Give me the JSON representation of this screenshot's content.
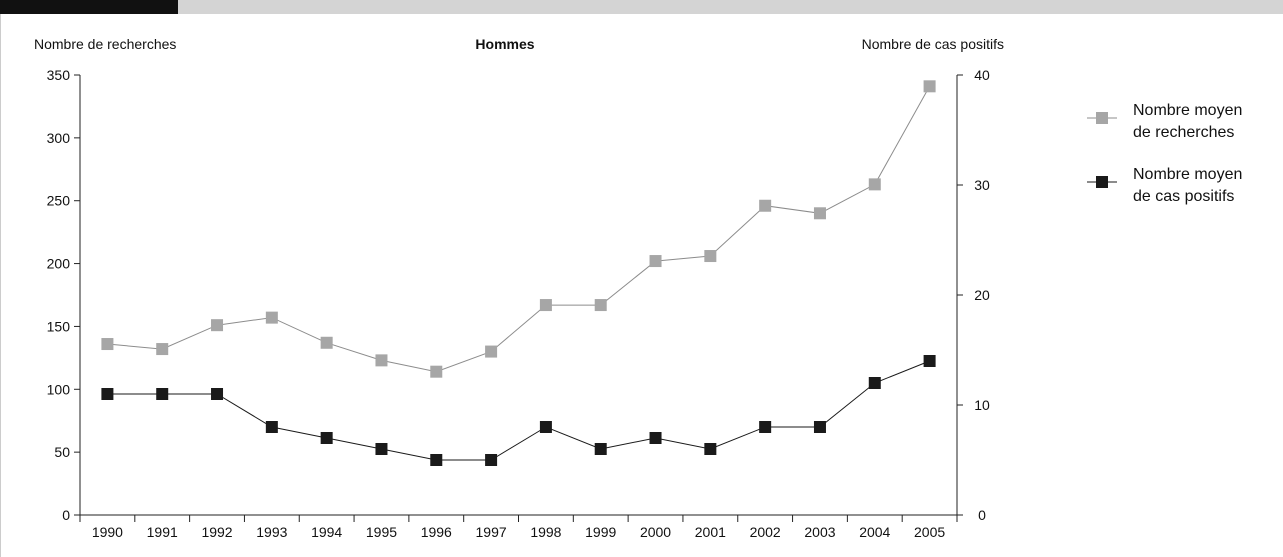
{
  "chart_data": {
    "type": "line",
    "title": "Hommes",
    "ylabel_left": "Nombre de recherches",
    "ylabel_right": "Nombre de cas positifs",
    "x": [
      "1990",
      "1991",
      "1992",
      "1993",
      "1994",
      "1995",
      "1996",
      "1997",
      "1998",
      "1999",
      "2000",
      "2001",
      "2002",
      "2003",
      "2004",
      "2005"
    ],
    "y_left_range": [
      0,
      350
    ],
    "y_left_ticks": [
      0,
      50,
      100,
      150,
      200,
      250,
      300,
      350
    ],
    "y_right_range": [
      0,
      40
    ],
    "y_right_ticks": [
      0,
      10,
      20,
      30,
      40
    ],
    "grid": false,
    "legend_position": "right",
    "series": [
      {
        "name": "Nombre moyen de recherches",
        "legend_lines": [
          "Nombre moyen",
          "de recherches"
        ],
        "axis": "left",
        "color": "#a6a6a6",
        "marker": "square",
        "values": [
          136,
          132,
          151,
          157,
          137,
          123,
          114,
          130,
          167,
          167,
          202,
          206,
          246,
          240,
          263,
          341
        ]
      },
      {
        "name": "Nombre moyen de cas positifs",
        "legend_lines": [
          "Nombre moyen",
          "de cas positifs"
        ],
        "axis": "right",
        "color": "#1a1a1a",
        "marker": "square",
        "values": [
          11,
          11,
          11,
          8,
          7,
          6,
          5,
          5,
          8,
          6,
          7,
          6,
          8,
          8,
          12,
          14
        ]
      }
    ]
  }
}
